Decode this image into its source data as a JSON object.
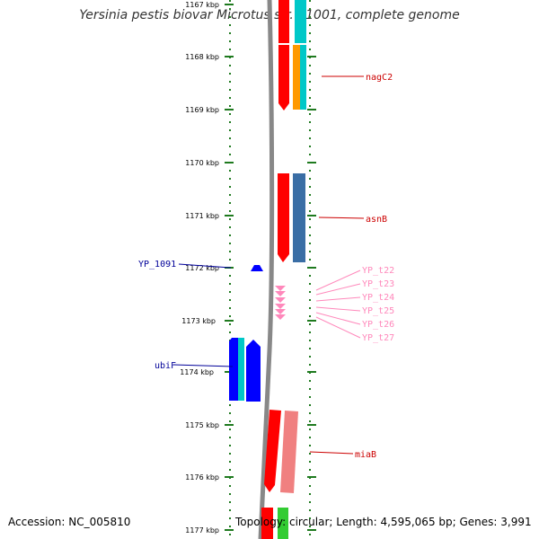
{
  "title": "Yersinia pestis biovar Microtus str. 91001, complete genome",
  "accession": "Accession: NC_005810",
  "topology": "Topology: circular; Length: 4,595,065 bp; Genes: 3,991",
  "colors": {
    "tick": "#1f7a1f",
    "backbone": "#888888",
    "cds_forward": "#ff0000",
    "cds_reverse": "#0000ff",
    "feature_cyan": "#00c8c8",
    "feature_orange": "#ff9900",
    "feature_steelblue": "#3a6ea5",
    "feature_lightred": "#f08080",
    "feature_green": "#33cc33",
    "trna": "#ff88bb",
    "label_red": "#cc0000",
    "label_blue": "#000099",
    "label_pink": "#ff88bb"
  },
  "kbp_ticks": [
    "1167 kbp",
    "1168 kbp",
    "1169 kbp",
    "1170 kbp",
    "1171 kbp",
    "1172 kbp",
    "1173 kbp",
    "1174 kbp",
    "1175 kbp",
    "1176 kbp",
    "1177 kbp"
  ],
  "gene_labels": {
    "nagC2": "nagC2",
    "asnB": "asnB",
    "miaB": "miaB",
    "yp1091": "YP_1091",
    "ubiF": "ubiF",
    "trnas": [
      "YP_t22",
      "YP_t23",
      "YP_t24",
      "YP_t25",
      "YP_t26",
      "YP_t27"
    ]
  }
}
